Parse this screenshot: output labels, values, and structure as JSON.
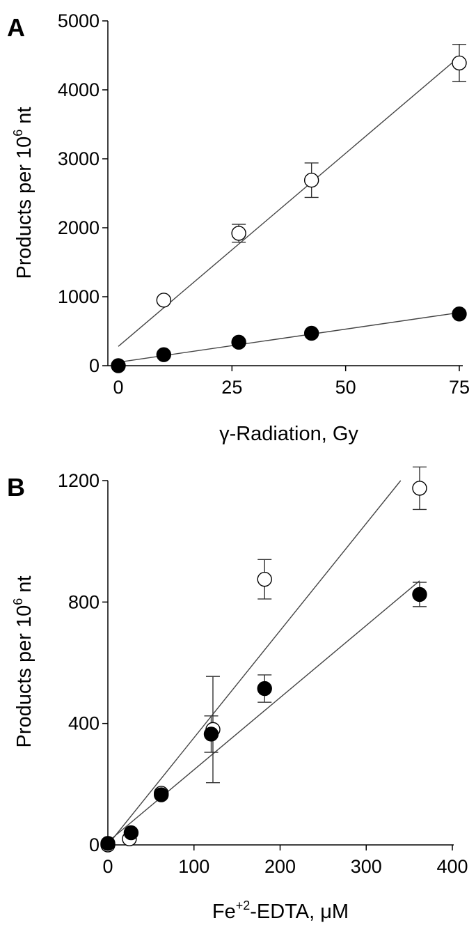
{
  "chart_data": [
    {
      "type": "scatter",
      "panel": "A",
      "xlabel": "γ-Radiation, Gy",
      "ylabel_prefix": "Products per 10",
      "ylabel_sup": "6",
      "ylabel_suffix": " nt",
      "xlim": [
        0,
        75
      ],
      "ylim": [
        0,
        5000
      ],
      "xticks": [
        0,
        25,
        50,
        75
      ],
      "yticks": [
        0,
        1000,
        2000,
        3000,
        4000,
        5000
      ],
      "series": [
        {
          "marker": "open-circle",
          "x": [
            10,
            26.5,
            42.5,
            75
          ],
          "y": [
            950,
            1920,
            2690,
            4390
          ],
          "err": [
            0,
            130,
            250,
            270
          ],
          "fit": {
            "x": [
              0,
              75
            ],
            "y": [
              280,
              4480
            ]
          }
        },
        {
          "marker": "filled-circle",
          "x": [
            0,
            10,
            26.5,
            42.5,
            75
          ],
          "y": [
            0,
            160,
            340,
            470,
            750
          ],
          "err": [
            0,
            0,
            0,
            0,
            0
          ],
          "fit": {
            "x": [
              0,
              75
            ],
            "y": [
              50,
              770
            ]
          }
        }
      ]
    },
    {
      "type": "scatter",
      "panel": "B",
      "xlabel": "Fe+2-EDTA, μM",
      "xlabel_base": "Fe",
      "xlabel_sup": "+2",
      "xlabel_suffix": "-EDTA, μM",
      "ylabel_prefix": "Products per 10",
      "ylabel_sup": "6",
      "ylabel_suffix": " nt",
      "xlim": [
        0,
        400
      ],
      "ylim": [
        0,
        1200
      ],
      "xticks": [
        0,
        100,
        200,
        300,
        400
      ],
      "yticks": [
        0,
        400,
        800,
        1200
      ],
      "series": [
        {
          "marker": "open-circle",
          "x": [
            0,
            25,
            62,
            122,
            182,
            362
          ],
          "y": [
            0,
            20,
            170,
            380,
            875,
            1175
          ],
          "err": [
            0,
            0,
            0,
            175,
            65,
            70
          ],
          "fit": {
            "x": [
              0,
              340
            ],
            "y": [
              0,
              1200
            ]
          }
        },
        {
          "marker": "filled-circle",
          "x": [
            0,
            27,
            62,
            120,
            182,
            362
          ],
          "y": [
            5,
            40,
            165,
            365,
            515,
            825
          ],
          "err": [
            0,
            0,
            0,
            60,
            45,
            40
          ],
          "fit": {
            "x": [
              0,
              362
            ],
            "y": [
              10,
              870
            ]
          }
        }
      ]
    }
  ]
}
